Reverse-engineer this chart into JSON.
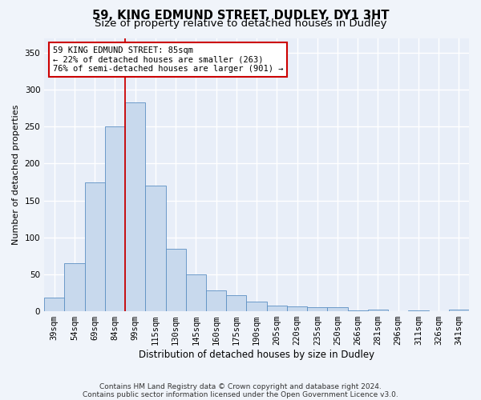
{
  "title1": "59, KING EDMUND STREET, DUDLEY, DY1 3HT",
  "title2": "Size of property relative to detached houses in Dudley",
  "xlabel": "Distribution of detached houses by size in Dudley",
  "ylabel": "Number of detached properties",
  "categories": [
    "39sqm",
    "54sqm",
    "69sqm",
    "84sqm",
    "99sqm",
    "115sqm",
    "130sqm",
    "145sqm",
    "160sqm",
    "175sqm",
    "190sqm",
    "205sqm",
    "220sqm",
    "235sqm",
    "250sqm",
    "266sqm",
    "281sqm",
    "296sqm",
    "311sqm",
    "326sqm",
    "341sqm"
  ],
  "values": [
    18,
    65,
    175,
    250,
    283,
    170,
    85,
    50,
    28,
    22,
    13,
    8,
    7,
    5,
    5,
    1,
    2,
    0,
    1,
    0,
    2
  ],
  "bar_color": "#c8d9ed",
  "bar_edge_color": "#5b8fc3",
  "background_color": "#f0f4fa",
  "plot_bg_color": "#e8eef8",
  "grid_color": "#ffffff",
  "red_line_x": 3.5,
  "annotation_line1": "59 KING EDMUND STREET: 85sqm",
  "annotation_line2": "← 22% of detached houses are smaller (263)",
  "annotation_line3": "76% of semi-detached houses are larger (901) →",
  "annotation_box_color": "#ffffff",
  "annotation_border_color": "#cc0000",
  "ylim": [
    0,
    370
  ],
  "yticks": [
    0,
    50,
    100,
    150,
    200,
    250,
    300,
    350
  ],
  "footer_line1": "Contains HM Land Registry data © Crown copyright and database right 2024.",
  "footer_line2": "Contains public sector information licensed under the Open Government Licence v3.0.",
  "red_line_color": "#cc0000",
  "title1_fontsize": 10.5,
  "title2_fontsize": 9.5,
  "xlabel_fontsize": 8.5,
  "ylabel_fontsize": 8,
  "tick_fontsize": 7.5,
  "annotation_fontsize": 7.5,
  "footer_fontsize": 6.5
}
